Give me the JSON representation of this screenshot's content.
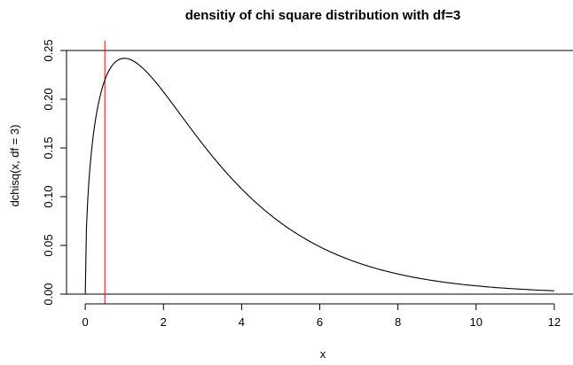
{
  "chart_data": {
    "type": "line",
    "title": "densitiy of chi square distribution with df=3",
    "xlabel": "x",
    "ylabel": "dchisq(x, df = 3)",
    "xlim": [
      0,
      12
    ],
    "ylim": [
      0,
      0.25
    ],
    "x_ticks": [
      "0",
      "2",
      "4",
      "6",
      "8",
      "10",
      "12"
    ],
    "y_ticks": [
      "0.00",
      "0.05",
      "0.10",
      "0.15",
      "0.20",
      "0.25"
    ],
    "series": [
      {
        "function": "dchisq",
        "df": 3,
        "x_range": [
          0,
          12
        ],
        "color": "#000000"
      }
    ],
    "reference_lines": [
      {
        "orientation": "horizontal",
        "value": 0,
        "color": "#000000"
      },
      {
        "orientation": "horizontal",
        "value": 0.25,
        "color": "#000000"
      },
      {
        "orientation": "vertical",
        "value": 0.5,
        "color": "#ff0000"
      }
    ],
    "grid": false,
    "legend": "none"
  }
}
